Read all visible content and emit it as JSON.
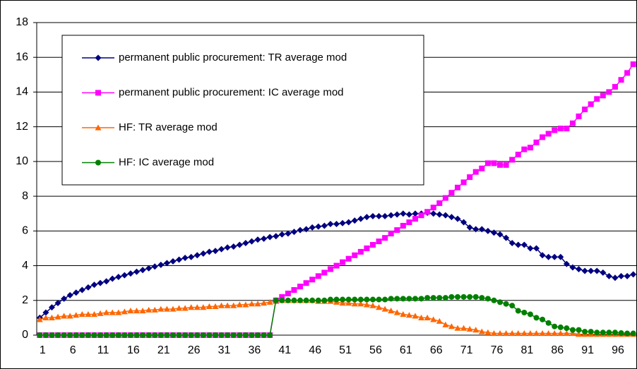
{
  "chart_data": {
    "type": "line",
    "categories": [
      1,
      null,
      null,
      null,
      null,
      6,
      null,
      null,
      null,
      null,
      11,
      null,
      null,
      null,
      null,
      16,
      null,
      null,
      null,
      null,
      21,
      null,
      null,
      null,
      null,
      26,
      null,
      null,
      null,
      null,
      31,
      null,
      null,
      null,
      null,
      36,
      null,
      null,
      null,
      null,
      41,
      null,
      null,
      null,
      null,
      46,
      null,
      null,
      null,
      null,
      51,
      null,
      null,
      null,
      null,
      56,
      null,
      null,
      null,
      null,
      61,
      null,
      null,
      null,
      null,
      66,
      null,
      null,
      null,
      null,
      71,
      null,
      null,
      null,
      null,
      76,
      null,
      null,
      null,
      null,
      81,
      null,
      null,
      null,
      null,
      86,
      null,
      null,
      null,
      null,
      91,
      null,
      null,
      null,
      null,
      96,
      null,
      null,
      null
    ],
    "series": [
      {
        "name": "permanent public procurement: TR average mod",
        "color": "#000080",
        "marker": "diamond",
        "values": [
          1.0,
          1.3,
          1.6,
          1.85,
          2.1,
          2.3,
          2.45,
          2.6,
          2.75,
          2.9,
          3.0,
          3.1,
          3.25,
          3.35,
          3.45,
          3.55,
          3.65,
          3.75,
          3.85,
          3.95,
          4.05,
          4.15,
          4.25,
          4.35,
          4.45,
          4.5,
          4.6,
          4.7,
          4.8,
          4.85,
          4.95,
          5.05,
          5.1,
          5.2,
          5.3,
          5.4,
          5.5,
          5.55,
          5.65,
          5.7,
          5.8,
          5.85,
          5.95,
          6.05,
          6.1,
          6.2,
          6.25,
          6.3,
          6.4,
          6.4,
          6.45,
          6.5,
          6.6,
          6.7,
          6.8,
          6.85,
          6.85,
          6.85,
          6.9,
          6.95,
          7.0,
          6.95,
          7.0,
          7.0,
          7.05,
          7.0,
          6.95,
          6.9,
          6.8,
          6.7,
          6.5,
          6.2,
          6.1,
          6.1,
          6.0,
          5.9,
          5.8,
          5.6,
          5.3,
          5.2,
          5.2,
          5.0,
          5.0,
          4.6,
          4.5,
          4.5,
          4.5,
          4.1,
          3.9,
          3.8,
          3.7,
          3.7,
          3.7,
          3.6,
          3.4,
          3.3,
          3.4,
          3.4,
          3.5
        ]
      },
      {
        "name": "permanent public procurement: IC average mod",
        "color": "#ff00ff",
        "marker": "square",
        "values": [
          0,
          0,
          0,
          0,
          0,
          0,
          0,
          0,
          0,
          0,
          0,
          0,
          0,
          0,
          0,
          0,
          0,
          0,
          0,
          0,
          0,
          0,
          0,
          0,
          0,
          0,
          0,
          0,
          0,
          0,
          0,
          0,
          0,
          0,
          0,
          0,
          0,
          0,
          0,
          2.0,
          2.2,
          2.4,
          2.6,
          2.8,
          3.0,
          3.2,
          3.4,
          3.6,
          3.8,
          4.0,
          4.2,
          4.4,
          4.6,
          4.8,
          5.0,
          5.2,
          5.4,
          5.6,
          5.85,
          6.05,
          6.3,
          6.5,
          6.7,
          6.9,
          7.1,
          7.35,
          7.6,
          7.9,
          8.2,
          8.5,
          8.8,
          9.1,
          9.4,
          9.6,
          9.9,
          9.9,
          9.8,
          9.8,
          10.1,
          10.4,
          10.7,
          10.8,
          11.1,
          11.4,
          11.6,
          11.8,
          11.9,
          11.9,
          12.2,
          12.6,
          13.0,
          13.3,
          13.6,
          13.8,
          14.0,
          14.3,
          14.7,
          15.1,
          15.6
        ]
      },
      {
        "name": "HF: TR average mod",
        "color": "#ff6600",
        "marker": "triangle",
        "values": [
          0.9,
          1.0,
          1.0,
          1.05,
          1.1,
          1.1,
          1.15,
          1.2,
          1.2,
          1.2,
          1.25,
          1.3,
          1.3,
          1.3,
          1.35,
          1.4,
          1.4,
          1.4,
          1.45,
          1.45,
          1.5,
          1.5,
          1.5,
          1.55,
          1.55,
          1.6,
          1.6,
          1.6,
          1.65,
          1.65,
          1.7,
          1.7,
          1.7,
          1.75,
          1.75,
          1.8,
          1.8,
          1.85,
          1.9,
          1.95,
          2.0,
          2.0,
          2.0,
          2.0,
          2.0,
          2.0,
          1.95,
          1.95,
          1.95,
          1.9,
          1.85,
          1.85,
          1.8,
          1.8,
          1.75,
          1.7,
          1.6,
          1.5,
          1.4,
          1.3,
          1.2,
          1.15,
          1.1,
          1.0,
          1.0,
          0.9,
          0.8,
          0.6,
          0.5,
          0.4,
          0.4,
          0.35,
          0.3,
          0.2,
          0.15,
          0.1,
          0.1,
          0.1,
          0.1,
          0.1,
          0.1,
          0.1,
          0.1,
          0.1,
          0.1,
          0.1,
          0.1,
          0.1,
          0.1,
          0.05,
          0.05,
          0.05,
          0.05,
          0.05,
          0.05,
          0.05,
          0.05,
          0.05,
          0.05
        ]
      },
      {
        "name": "HF: IC average mod",
        "color": "#008000",
        "marker": "circle",
        "values": [
          0,
          0,
          0,
          0,
          0,
          0,
          0,
          0,
          0,
          0,
          0,
          0,
          0,
          0,
          0,
          0,
          0,
          0,
          0,
          0,
          0,
          0,
          0,
          0,
          0,
          0,
          0,
          0,
          0,
          0,
          0,
          0,
          0,
          0,
          0,
          0,
          0,
          0,
          0,
          2.0,
          2.0,
          2.0,
          2.0,
          2.0,
          2.0,
          2.0,
          2.0,
          2.0,
          2.05,
          2.05,
          2.05,
          2.05,
          2.05,
          2.05,
          2.05,
          2.05,
          2.05,
          2.05,
          2.1,
          2.1,
          2.1,
          2.1,
          2.1,
          2.1,
          2.15,
          2.15,
          2.15,
          2.15,
          2.2,
          2.2,
          2.2,
          2.2,
          2.2,
          2.15,
          2.1,
          2.0,
          1.9,
          1.8,
          1.7,
          1.4,
          1.3,
          1.2,
          1.0,
          0.9,
          0.7,
          0.5,
          0.45,
          0.4,
          0.3,
          0.3,
          0.2,
          0.2,
          0.15,
          0.15,
          0.15,
          0.15,
          0.12,
          0.1,
          0.1
        ]
      }
    ],
    "ylim": [
      0,
      18
    ],
    "yticks": [
      0,
      2,
      4,
      6,
      8,
      10,
      12,
      14,
      16,
      18
    ],
    "grid": true,
    "legend": "top-left"
  }
}
